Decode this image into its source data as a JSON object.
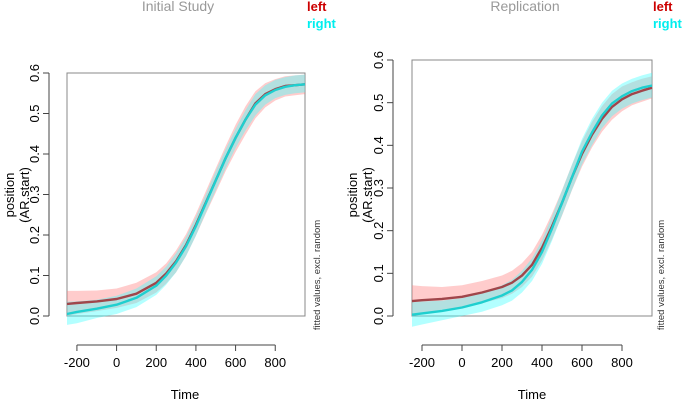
{
  "colors": {
    "left_line": "#a0454a",
    "left_band": "#ff8080",
    "right_line": "#1fcfcf",
    "right_band": "#40ffff",
    "axis": "#444444",
    "title": "#999999",
    "legend_left": "#cc0000",
    "legend_right": "#00eeee"
  },
  "chart_data": [
    {
      "type": "line",
      "title": "Initial Study",
      "xlabel": "Time",
      "ylabel_line1": "position",
      "ylabel_line2": "(AR.start)",
      "side_note": "fitted values, excl. random",
      "xlim": [
        -250,
        950
      ],
      "ylim": [
        0,
        0.6
      ],
      "xticks": [
        -200,
        0,
        200,
        400,
        600,
        800
      ],
      "yticks": [
        0.0,
        0.1,
        0.2,
        0.3,
        0.4,
        0.5,
        0.6
      ],
      "xtick_labels": [
        "-200",
        "0",
        "200",
        "400",
        "600",
        "800"
      ],
      "ytick_labels": [
        "0.0",
        "0.1",
        "0.2",
        "0.3",
        "0.4",
        "0.5",
        "0.6"
      ],
      "legend": [
        "left",
        "right"
      ],
      "x": [
        -250,
        -200,
        -100,
        0,
        100,
        200,
        250,
        300,
        350,
        400,
        450,
        500,
        550,
        600,
        650,
        700,
        750,
        800,
        850,
        900,
        950
      ],
      "series": [
        {
          "name": "left",
          "values": [
            0.03,
            0.032,
            0.036,
            0.042,
            0.055,
            0.082,
            0.105,
            0.135,
            0.175,
            0.225,
            0.28,
            0.335,
            0.39,
            0.44,
            0.485,
            0.525,
            0.548,
            0.56,
            0.568,
            0.57,
            0.572
          ],
          "lower": [
            0.0,
            0.005,
            0.012,
            0.02,
            0.032,
            0.058,
            0.08,
            0.108,
            0.148,
            0.198,
            0.252,
            0.305,
            0.358,
            0.405,
            0.448,
            0.488,
            0.515,
            0.532,
            0.542,
            0.545,
            0.548
          ],
          "upper": [
            0.062,
            0.062,
            0.063,
            0.068,
            0.082,
            0.108,
            0.13,
            0.162,
            0.202,
            0.252,
            0.308,
            0.365,
            0.42,
            0.472,
            0.518,
            0.555,
            0.575,
            0.585,
            0.592,
            0.594,
            0.596
          ]
        },
        {
          "name": "right",
          "values": [
            0.005,
            0.01,
            0.018,
            0.028,
            0.045,
            0.075,
            0.1,
            0.132,
            0.172,
            0.222,
            0.278,
            0.335,
            0.39,
            0.44,
            0.485,
            0.522,
            0.545,
            0.558,
            0.566,
            0.57,
            0.572
          ],
          "lower": [
            -0.022,
            -0.018,
            -0.005,
            0.005,
            0.022,
            0.052,
            0.077,
            0.108,
            0.148,
            0.198,
            0.255,
            0.31,
            0.365,
            0.415,
            0.458,
            0.495,
            0.522,
            0.538,
            0.546,
            0.55,
            0.552
          ],
          "upper": [
            0.035,
            0.036,
            0.04,
            0.05,
            0.068,
            0.098,
            0.122,
            0.155,
            0.195,
            0.245,
            0.3,
            0.358,
            0.412,
            0.462,
            0.508,
            0.548,
            0.57,
            0.583,
            0.59,
            0.594,
            0.596
          ]
        }
      ]
    },
    {
      "type": "line",
      "title": "Replication",
      "xlabel": "Time",
      "ylabel_line1": "position",
      "ylabel_line2": "(AR.start)",
      "side_note": "fitted values, excl. random",
      "xlim": [
        -250,
        950
      ],
      "ylim": [
        0,
        0.6
      ],
      "xticks": [
        -200,
        0,
        200,
        400,
        600,
        800
      ],
      "yticks": [
        0.0,
        0.1,
        0.2,
        0.3,
        0.4,
        0.5,
        0.6
      ],
      "xtick_labels": [
        "-200",
        "0",
        "200",
        "400",
        "600",
        "800"
      ],
      "ytick_labels": [
        "0.0",
        "0.1",
        "0.2",
        "0.3",
        "0.4",
        "0.5",
        "0.6"
      ],
      "legend": [
        "left",
        "right"
      ],
      "x": [
        -250,
        -200,
        -100,
        0,
        100,
        200,
        250,
        300,
        350,
        400,
        450,
        500,
        550,
        600,
        650,
        700,
        750,
        800,
        850,
        900,
        950
      ],
      "series": [
        {
          "name": "left",
          "values": [
            0.035,
            0.037,
            0.04,
            0.045,
            0.055,
            0.068,
            0.078,
            0.095,
            0.12,
            0.16,
            0.21,
            0.265,
            0.325,
            0.38,
            0.425,
            0.462,
            0.49,
            0.508,
            0.52,
            0.528,
            0.535
          ],
          "lower": [
            0.0,
            0.005,
            0.015,
            0.02,
            0.03,
            0.042,
            0.052,
            0.068,
            0.092,
            0.13,
            0.18,
            0.235,
            0.295,
            0.35,
            0.395,
            0.432,
            0.46,
            0.48,
            0.494,
            0.502,
            0.51
          ],
          "upper": [
            0.072,
            0.07,
            0.068,
            0.072,
            0.082,
            0.095,
            0.106,
            0.124,
            0.15,
            0.19,
            0.24,
            0.295,
            0.355,
            0.41,
            0.455,
            0.492,
            0.52,
            0.538,
            0.548,
            0.556,
            0.562
          ]
        },
        {
          "name": "right",
          "values": [
            0.003,
            0.006,
            0.012,
            0.02,
            0.032,
            0.048,
            0.06,
            0.08,
            0.108,
            0.15,
            0.205,
            0.265,
            0.325,
            0.385,
            0.43,
            0.47,
            0.498,
            0.515,
            0.527,
            0.535,
            0.54
          ],
          "lower": [
            -0.025,
            -0.02,
            -0.01,
            0.0,
            0.01,
            0.025,
            0.036,
            0.055,
            0.082,
            0.122,
            0.176,
            0.236,
            0.296,
            0.355,
            0.4,
            0.44,
            0.468,
            0.486,
            0.498,
            0.506,
            0.512
          ],
          "upper": [
            0.032,
            0.034,
            0.036,
            0.042,
            0.055,
            0.072,
            0.085,
            0.106,
            0.135,
            0.178,
            0.234,
            0.294,
            0.355,
            0.415,
            0.462,
            0.5,
            0.528,
            0.545,
            0.556,
            0.564,
            0.57
          ]
        }
      ]
    }
  ]
}
